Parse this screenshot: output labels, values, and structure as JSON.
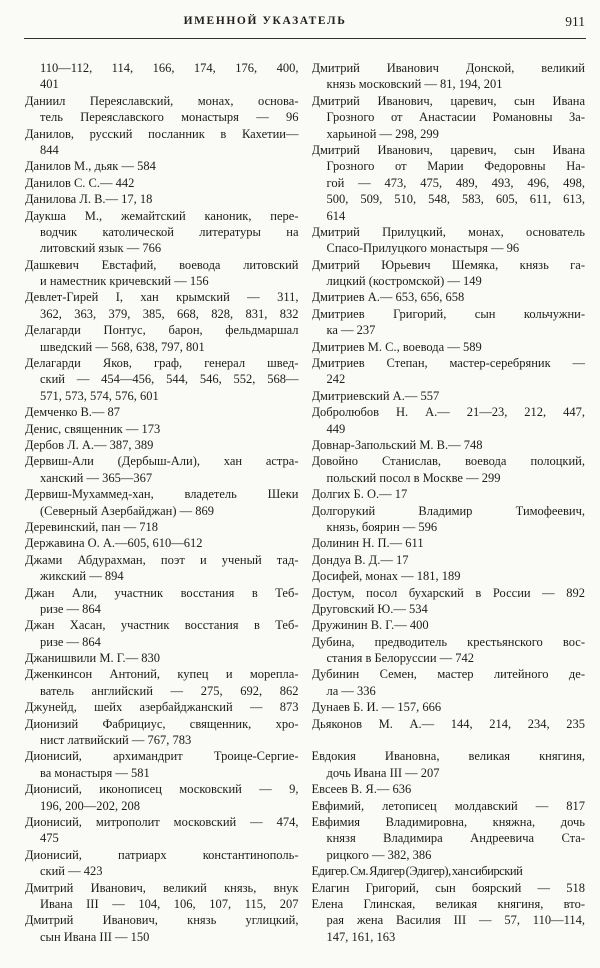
{
  "header": {
    "title": "ИМЕННОЙ УКАЗАТЕЛЬ",
    "page_number": "911"
  },
  "columns": {
    "left": [
      {
        "t": "110—112, 114, 166, 174, 176, 400,",
        "i": 1,
        "j": 1
      },
      {
        "t": "401",
        "i": 1
      },
      {
        "t": "Даниил Переяславский, монах, основа-",
        "j": 1
      },
      {
        "t": "тель Переяславского монастыря — 96",
        "i": 1,
        "j": 1
      },
      {
        "t": "Данилов, русский посланник в Кахетии—",
        "j": 1
      },
      {
        "t": "844",
        "i": 1
      },
      {
        "t": "Данилов М., дьяк — 584"
      },
      {
        "t": "Данилов С. С.— 442"
      },
      {
        "t": "Данилова Л. В.— 17, 18"
      },
      {
        "t": "Даукша М., жемайтский каноник, пере-",
        "j": 1
      },
      {
        "t": "водчик католической литературы на",
        "i": 1,
        "j": 1
      },
      {
        "t": "литовский язык — 766",
        "i": 1
      },
      {
        "t": "Дашкевич Евстафий, воевода литовский",
        "j": 1
      },
      {
        "t": "и наместник кричевский — 156",
        "i": 1
      },
      {
        "t": "Девлет-Гирей I, хан крымский — 311,",
        "j": 1
      },
      {
        "t": "362, 363, 379, 385, 668, 828, 831, 832",
        "i": 1,
        "j": 1
      },
      {
        "t": "Делагарди Понтус, барон, фельдмаршал",
        "j": 1
      },
      {
        "t": "шведский — 568, 638, 797, 801",
        "i": 1
      },
      {
        "t": "Делагарди Яков, граф, генерал швед-",
        "j": 1
      },
      {
        "t": "ский — 454—456, 544, 546, 552, 568—",
        "i": 1,
        "j": 1
      },
      {
        "t": "571, 573, 574, 576, 601",
        "i": 1
      },
      {
        "t": "Демченко В.— 87"
      },
      {
        "t": "Денис, священник — 173"
      },
      {
        "t": "Дербов Л. А.— 387, 389"
      },
      {
        "t": "Дервиш-Али (Дербыш-Али), хан астра-",
        "j": 1
      },
      {
        "t": "ханский — 365—367",
        "i": 1
      },
      {
        "t": "Дервиш-Мухаммед-хан, владетель Шеки",
        "j": 1
      },
      {
        "t": "(Северный Азербайджан) — 869",
        "i": 1
      },
      {
        "t": "Деревинский, пан — 718"
      },
      {
        "t": "Державина О. А.—605, 610—612"
      },
      {
        "t": "Джами Абдурахман, поэт и ученый тад-",
        "j": 1
      },
      {
        "t": "жикский — 894",
        "i": 1
      },
      {
        "t": "Джан Али, участник восстания в Теб-",
        "j": 1
      },
      {
        "t": "ризе — 864",
        "i": 1
      },
      {
        "t": "Джан Хасан, участник восстания в Теб-",
        "j": 1
      },
      {
        "t": "ризе — 864",
        "i": 1
      },
      {
        "t": "Джанишвили М. Г.— 830"
      },
      {
        "t": "Дженкинсон Антоний, купец и морепла-",
        "j": 1
      },
      {
        "t": "ватель английский — 275, 692, 862",
        "i": 1,
        "j": 1
      },
      {
        "t": "Джунейд, шейх азербайджанский — 873",
        "j": 1
      },
      {
        "t": "Дионизий Фабрициус, священник, хро-",
        "j": 1
      },
      {
        "t": "нист латвийский — 767, 783",
        "i": 1
      },
      {
        "t": "Дионисий, архимандрит Троице-Сергие-",
        "j": 1
      },
      {
        "t": "ва монастыря — 581",
        "i": 1
      },
      {
        "t": "Дионисий, иконописец московский — 9,",
        "j": 1
      },
      {
        "t": "196, 200—202, 208",
        "i": 1
      },
      {
        "t": "Дионисий, митрополит московский — 474,",
        "j": 1
      },
      {
        "t": "475",
        "i": 1
      },
      {
        "t": "Дионисий, патриарх константинополь-",
        "j": 1
      },
      {
        "t": "ский — 423",
        "i": 1
      },
      {
        "t": "Дмитрий Иванович, великий князь, внук",
        "j": 1
      },
      {
        "t": "Ивана III — 104, 106, 107, 115, 207",
        "i": 1,
        "j": 1
      },
      {
        "t": "Дмитрий Иванович, князь углицкий,",
        "j": 1
      },
      {
        "t": "сын Ивана III — 150",
        "i": 1
      }
    ],
    "right": [
      {
        "t": "Дмитрий Иванович Донской, великий",
        "j": 1
      },
      {
        "t": "князь московский — 81, 194, 201",
        "i": 1
      },
      {
        "t": "Дмитрий Иванович, царевич, сын Ивана",
        "j": 1
      },
      {
        "t": "Грозного от Анастасии Романовны За-",
        "i": 1,
        "j": 1
      },
      {
        "t": "харьиной — 298, 299",
        "i": 1
      },
      {
        "t": "Дмитрий Иванович, царевич, сын Ивана",
        "j": 1
      },
      {
        "t": "Грозного от Марии Федоровны На-",
        "i": 1,
        "j": 1
      },
      {
        "t": "гой — 473, 475, 489, 493, 496, 498,",
        "i": 1,
        "j": 1
      },
      {
        "t": "500, 509, 510, 548, 583, 605, 611, 613,",
        "i": 1,
        "j": 1
      },
      {
        "t": "614",
        "i": 1
      },
      {
        "t": "Дмитрий Прилуцкий, монах, основатель",
        "j": 1
      },
      {
        "t": "Спасо-Прилуцкого монастыря — 96",
        "i": 1
      },
      {
        "t": "Дмитрий Юрьевич Шемяка, князь га-",
        "j": 1
      },
      {
        "t": "лицкий (костромской) — 149",
        "i": 1
      },
      {
        "t": "Дмитриев А.— 653, 656, 658"
      },
      {
        "t": "Дмитриев Григорий, сын кольчужни-",
        "j": 1
      },
      {
        "t": "ка — 237",
        "i": 1
      },
      {
        "t": "Дмитриев М. С., воевода — 589"
      },
      {
        "t": "Дмитриев Степан, мастер-серебряник —",
        "j": 1
      },
      {
        "t": "242",
        "i": 1
      },
      {
        "t": "Дмитриевский А.— 557"
      },
      {
        "t": "Добролюбов Н. А.— 21—23, 212, 447,",
        "j": 1
      },
      {
        "t": "449",
        "i": 1
      },
      {
        "t": "Довнар-Запольский М. В.— 748"
      },
      {
        "t": "Довойно Станислав, воевода полоцкий,",
        "j": 1
      },
      {
        "t": "польский посол в Москве — 299",
        "i": 1
      },
      {
        "t": "Долгих Б. О.— 17"
      },
      {
        "t": "Долгорукий Владимир Тимофеевич,",
        "j": 1
      },
      {
        "t": "князь, боярин — 596",
        "i": 1
      },
      {
        "t": "Долинин Н. П.— 611"
      },
      {
        "t": "Дондуа В. Д.— 17"
      },
      {
        "t": "Досифей, монах — 181, 189"
      },
      {
        "t": "Достум, посол бухарский в России — 892",
        "j": 1
      },
      {
        "t": "Друговский Ю.— 534"
      },
      {
        "t": "Дружинин В. Г.— 400"
      },
      {
        "t": "Дубина, предводитель крестьянского вос-",
        "j": 1
      },
      {
        "t": "стания в Белоруссии — 742",
        "i": 1
      },
      {
        "t": "Дубинин Семен, мастер литейного де-",
        "j": 1
      },
      {
        "t": "ла — 336",
        "i": 1
      },
      {
        "t": "Дунаев Б. И. — 157, 666"
      },
      {
        "t": "Дьяконов М. А.— 144, 214, 234, 235",
        "j": 1
      },
      {
        "g": 1
      },
      {
        "t": "Евдокия Ивановна, великая княгиня,",
        "j": 1
      },
      {
        "t": "дочь Ивана III — 207",
        "i": 1
      },
      {
        "t": "Евсеев В. Я.— 636"
      },
      {
        "t": "Евфимий, летописец молдавский — 817",
        "j": 1
      },
      {
        "t": "Евфимия Владимировна, княжна, дочь",
        "j": 1
      },
      {
        "t": "князя Владимира Андреевича Ста-",
        "i": 1,
        "j": 1
      },
      {
        "t": "рицкого — 382, 386",
        "i": 1
      },
      {
        "t": "Едигер. См. Ядигер (Эдигер), хан сибирский",
        "c": 1
      },
      {
        "t": "Елагин Григорий, сын боярский — 518",
        "j": 1
      },
      {
        "t": "Елена Глинская, великая княгиня, вто-",
        "j": 1
      },
      {
        "t": "рая жена Василия III — 57, 110—114,",
        "i": 1,
        "j": 1
      },
      {
        "t": "147, 161, 163",
        "i": 1
      }
    ]
  }
}
